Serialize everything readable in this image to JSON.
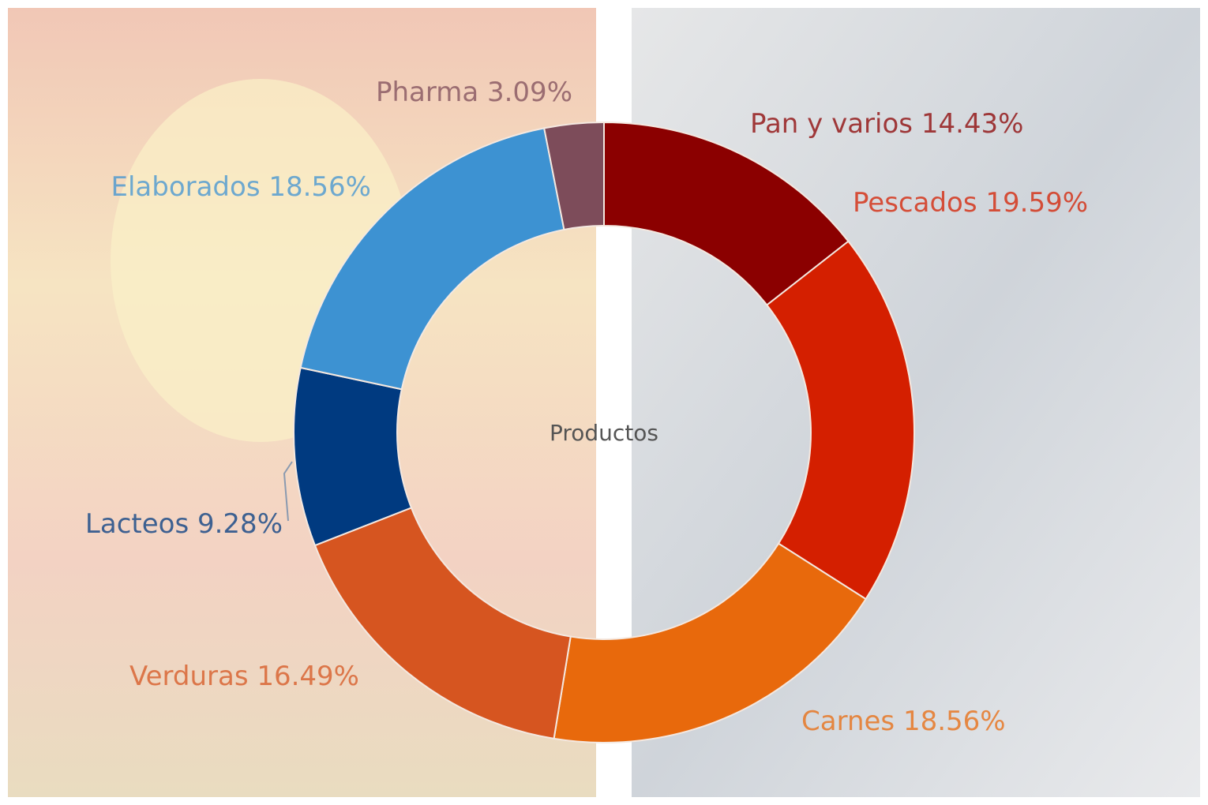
{
  "chart_data": {
    "type": "donut",
    "title": "Productos",
    "categories": [
      "Pan y varios",
      "Pescados",
      "Carnes",
      "Verduras",
      "Lacteos",
      "Elaborados",
      "Pharma"
    ],
    "values": [
      14.43,
      19.59,
      18.56,
      16.49,
      9.28,
      18.56,
      3.09
    ],
    "value_labels": [
      "14.43%",
      "19.59%",
      "18.56%",
      "16.49%",
      "9.28%",
      "18.56%",
      "3.09%"
    ],
    "colors": [
      "#8b0000",
      "#d41f00",
      "#e8690c",
      "#d65520",
      "#003a80",
      "#3d92d2",
      "#7d4c5a"
    ]
  }
}
